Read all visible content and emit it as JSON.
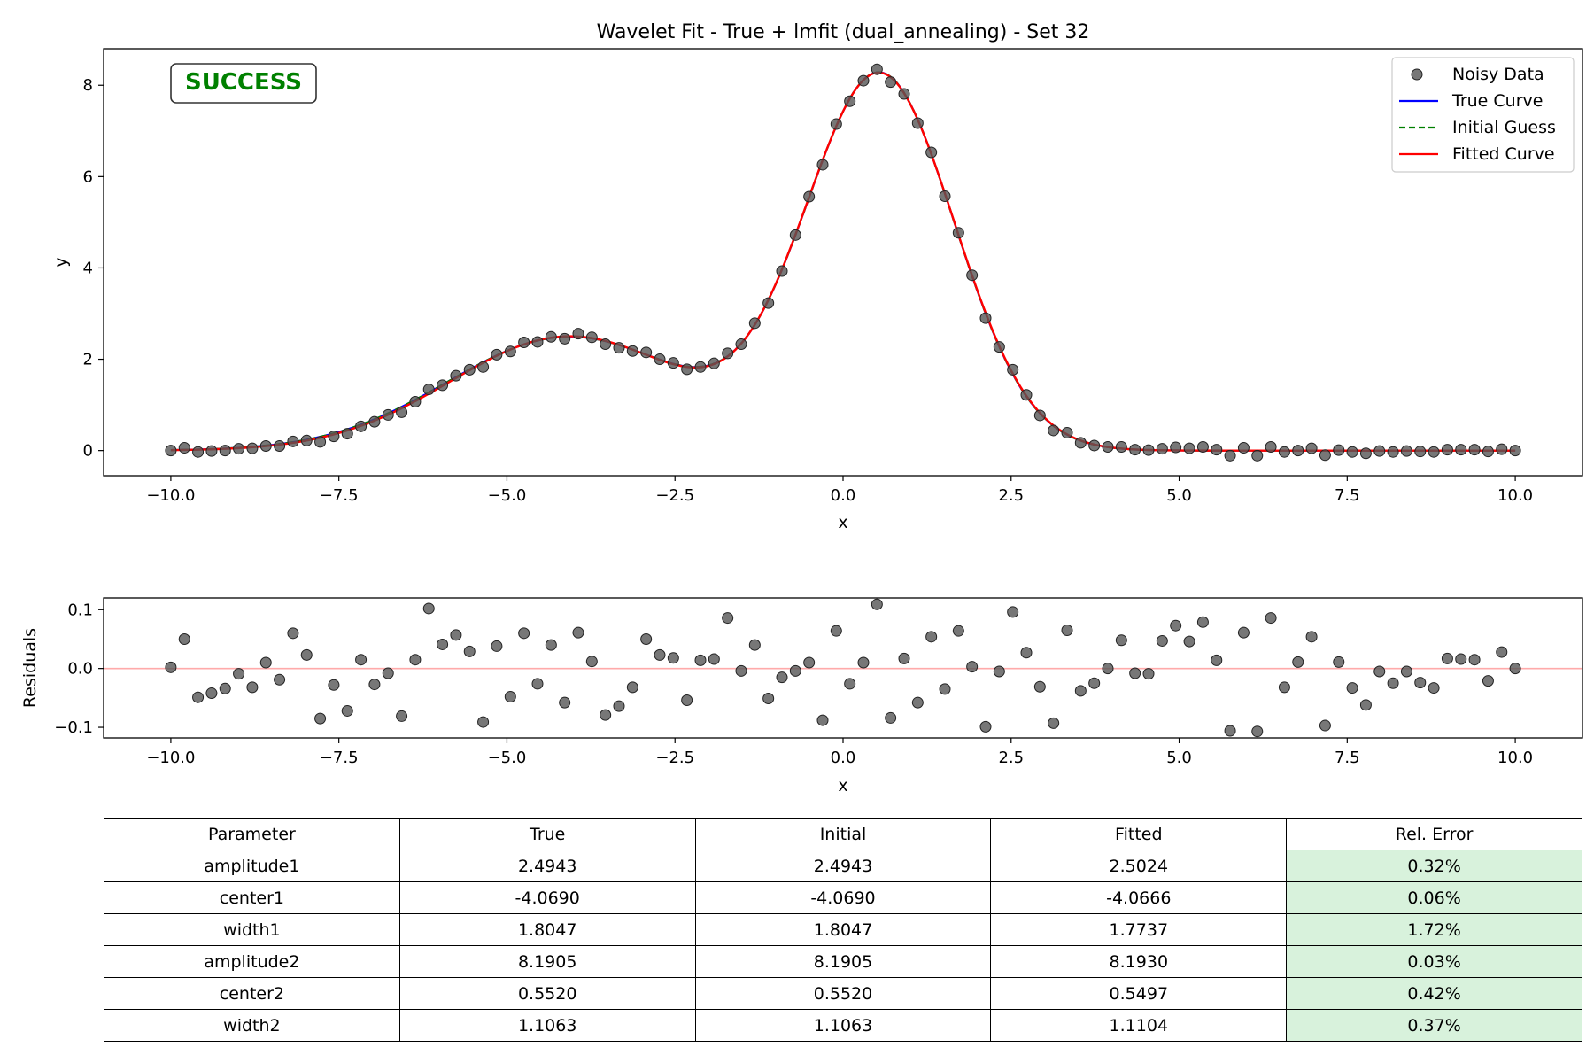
{
  "chart_data": [
    {
      "type": "scatter",
      "title": "Wavelet Fit - True + lmfit (dual_annealing) - Set 32",
      "xlabel": "x",
      "ylabel": "y",
      "xlim": [
        -11,
        11
      ],
      "ylim": [
        -0.55,
        8.8
      ],
      "xticks": [
        -10,
        -7.5,
        -5,
        -2.5,
        0,
        2.5,
        5,
        7.5,
        10
      ],
      "xtick_labels": [
        "−10.0",
        "−7.5",
        "−5.0",
        "−2.5",
        "0.0",
        "2.5",
        "5.0",
        "7.5",
        "10.0"
      ],
      "yticks": [
        0,
        2,
        4,
        6,
        8
      ],
      "ytick_labels": [
        "0",
        "2",
        "4",
        "6",
        "8"
      ],
      "grid": false,
      "legend_position": "top-right",
      "status_label": "SUCCESS",
      "legend": [
        {
          "label": "Noisy Data",
          "style": "marker",
          "color": "#555555"
        },
        {
          "label": "True Curve",
          "style": "solid",
          "color": "#0000ff"
        },
        {
          "label": "Initial Guess",
          "style": "dashed",
          "color": "#008000"
        },
        {
          "label": "Fitted Curve",
          "style": "solid",
          "color": "#ff0000"
        }
      ],
      "curves": {
        "true": {
          "amplitude1": 2.4943,
          "center1": -4.069,
          "width1": 1.8047,
          "amplitude2": 8.1905,
          "center2": 0.552,
          "width2": 1.1063
        },
        "initial": {
          "amplitude1": 2.4943,
          "center1": -4.069,
          "width1": 1.8047,
          "amplitude2": 8.1905,
          "center2": 0.552,
          "width2": 1.1063
        },
        "fitted": {
          "amplitude1": 2.5024,
          "center1": -4.0666,
          "width1": 1.7737,
          "amplitude2": 8.193,
          "center2": 0.5497,
          "width2": 1.1104
        }
      },
      "series": [
        {
          "name": "Noisy Data",
          "x": [
            -10,
            -9.798,
            -9.596,
            -9.394,
            -9.192,
            -8.99,
            -8.788,
            -8.586,
            -8.384,
            -8.182,
            -7.98,
            -7.778,
            -7.576,
            -7.374,
            -7.172,
            -6.97,
            -6.768,
            -6.566,
            -6.364,
            -6.162,
            -5.96,
            -5.758,
            -5.556,
            -5.354,
            -5.152,
            -4.949,
            -4.747,
            -4.545,
            -4.343,
            -4.141,
            -3.939,
            -3.737,
            -3.535,
            -3.333,
            -3.131,
            -2.929,
            -2.727,
            -2.525,
            -2.323,
            -2.121,
            -1.919,
            -1.717,
            -1.515,
            -1.313,
            -1.111,
            -0.909,
            -0.707,
            -0.505,
            -0.303,
            -0.101,
            0.101,
            0.303,
            0.505,
            0.707,
            0.909,
            1.111,
            1.313,
            1.515,
            1.717,
            1.919,
            2.121,
            2.323,
            2.525,
            2.727,
            2.929,
            3.131,
            3.333,
            3.535,
            3.737,
            3.939,
            4.141,
            4.343,
            4.545,
            4.747,
            4.949,
            5.152,
            5.354,
            5.556,
            5.758,
            5.96,
            6.162,
            6.364,
            6.566,
            6.768,
            6.97,
            7.172,
            7.374,
            7.576,
            7.778,
            7.98,
            8.182,
            8.384,
            8.586,
            8.788,
            8.99,
            9.192,
            9.394,
            9.596,
            9.798,
            10
          ],
          "y": [
            0.0,
            0.06,
            -0.03,
            -0.01,
            0.0,
            0.04,
            0.05,
            0.1,
            0.1,
            0.2,
            0.22,
            0.19,
            0.31,
            0.37,
            0.53,
            0.63,
            0.78,
            0.84,
            1.07,
            1.34,
            1.43,
            1.64,
            1.77,
            1.83,
            2.1,
            2.17,
            2.37,
            2.38,
            2.49,
            2.45,
            2.56,
            2.48,
            2.33,
            2.25,
            2.18,
            2.15,
            2.0,
            1.92,
            1.78,
            1.83,
            1.91,
            2.13,
            2.33,
            2.79,
            3.23,
            3.93,
            4.72,
            5.56,
            6.26,
            7.15,
            7.65,
            8.1,
            8.35,
            8.07,
            7.81,
            7.17,
            6.53,
            5.57,
            4.77,
            3.84,
            2.9,
            2.27,
            1.77,
            1.22,
            0.77,
            0.44,
            0.39,
            0.17,
            0.11,
            0.08,
            0.08,
            0.02,
            0.01,
            0.04,
            0.07,
            0.05,
            0.08,
            0.02,
            -0.11,
            0.06,
            -0.11,
            0.08,
            -0.03,
            0.0,
            0.05,
            -0.1,
            0.01,
            -0.03,
            -0.06,
            -0.01,
            -0.03,
            -0.01,
            -0.02,
            -0.03,
            0.02,
            0.02,
            0.02,
            -0.02,
            0.03,
            0.0
          ]
        }
      ]
    },
    {
      "type": "scatter",
      "title": "",
      "xlabel": "x",
      "ylabel": "Residuals",
      "xlim": [
        -11,
        11
      ],
      "ylim": [
        -0.118,
        0.12
      ],
      "xticks": [
        -10,
        -7.5,
        -5,
        -2.5,
        0,
        2.5,
        5,
        7.5,
        10
      ],
      "xtick_labels": [
        "−10.0",
        "−7.5",
        "−5.0",
        "−2.5",
        "0.0",
        "2.5",
        "5.0",
        "7.5",
        "10.0"
      ],
      "yticks": [
        0.1,
        0.0,
        -0.1
      ],
      "ytick_labels": [
        "0.1",
        "0.0",
        "−0.1"
      ],
      "grid": false,
      "zero_line_color": "#ffaaaa",
      "series": [
        {
          "x": [
            -10,
            -9.798,
            -9.596,
            -9.394,
            -9.192,
            -8.99,
            -8.788,
            -8.586,
            -8.384,
            -8.182,
            -7.98,
            -7.778,
            -7.576,
            -7.374,
            -7.172,
            -6.97,
            -6.768,
            -6.566,
            -6.364,
            -6.162,
            -5.96,
            -5.758,
            -5.556,
            -5.354,
            -5.152,
            -4.949,
            -4.747,
            -4.545,
            -4.343,
            -4.141,
            -3.939,
            -3.737,
            -3.535,
            -3.333,
            -3.131,
            -2.929,
            -2.727,
            -2.525,
            -2.323,
            -2.121,
            -1.919,
            -1.717,
            -1.515,
            -1.313,
            -1.111,
            -0.909,
            -0.707,
            -0.505,
            -0.303,
            -0.101,
            0.101,
            0.303,
            0.505,
            0.707,
            0.909,
            1.111,
            1.313,
            1.515,
            1.717,
            1.919,
            2.121,
            2.323,
            2.525,
            2.727,
            2.929,
            3.131,
            3.333,
            3.535,
            3.737,
            3.939,
            4.141,
            4.343,
            4.545,
            4.747,
            4.949,
            5.152,
            5.354,
            5.556,
            5.758,
            5.96,
            6.162,
            6.364,
            6.566,
            6.768,
            6.97,
            7.172,
            7.374,
            7.576,
            7.778,
            7.98,
            8.182,
            8.384,
            8.586,
            8.788,
            8.99,
            9.192,
            9.394,
            9.596,
            9.798,
            10
          ],
          "y": [
            0.002,
            0.05,
            -0.049,
            -0.042,
            -0.034,
            -0.009,
            -0.032,
            0.01,
            -0.019,
            0.06,
            0.023,
            -0.085,
            -0.028,
            -0.072,
            0.015,
            -0.027,
            -0.008,
            -0.081,
            0.015,
            0.102,
            0.041,
            0.057,
            0.029,
            -0.091,
            0.038,
            -0.048,
            0.06,
            -0.026,
            0.04,
            -0.058,
            0.061,
            0.012,
            -0.079,
            -0.064,
            -0.032,
            0.05,
            0.023,
            0.018,
            -0.054,
            0.014,
            0.016,
            0.086,
            -0.004,
            0.04,
            -0.051,
            -0.015,
            -0.004,
            0.01,
            -0.088,
            0.064,
            -0.026,
            0.01,
            0.109,
            -0.084,
            0.017,
            -0.058,
            0.054,
            -0.035,
            0.064,
            0.003,
            -0.099,
            -0.005,
            0.096,
            0.027,
            -0.031,
            -0.093,
            0.065,
            -0.038,
            -0.025,
            0.0,
            0.048,
            -0.008,
            -0.009,
            0.047,
            0.073,
            0.046,
            0.079,
            0.014,
            -0.106,
            0.061,
            -0.107,
            0.086,
            -0.032,
            0.011,
            0.054,
            -0.097,
            0.011,
            -0.033,
            -0.062,
            -0.005,
            -0.025,
            -0.005,
            -0.024,
            -0.033,
            0.017,
            0.016,
            0.015,
            -0.021,
            0.028,
            0.0
          ]
        }
      ]
    }
  ],
  "param_table": {
    "headers": [
      "Parameter",
      "True",
      "Initial",
      "Fitted",
      "Rel. Error"
    ],
    "rows": [
      [
        "amplitude1",
        "2.4943",
        "2.4943",
        "2.5024",
        "0.32%"
      ],
      [
        "center1",
        "-4.0690",
        "-4.0690",
        "-4.0666",
        "0.06%"
      ],
      [
        "width1",
        "1.8047",
        "1.8047",
        "1.7737",
        "1.72%"
      ],
      [
        "amplitude2",
        "8.1905",
        "8.1905",
        "8.1930",
        "0.03%"
      ],
      [
        "center2",
        "0.5520",
        "0.5520",
        "0.5497",
        "0.42%"
      ],
      [
        "width2",
        "1.1063",
        "1.1063",
        "1.1104",
        "0.37%"
      ]
    ],
    "error_cell_color": "#d8f2dc"
  }
}
